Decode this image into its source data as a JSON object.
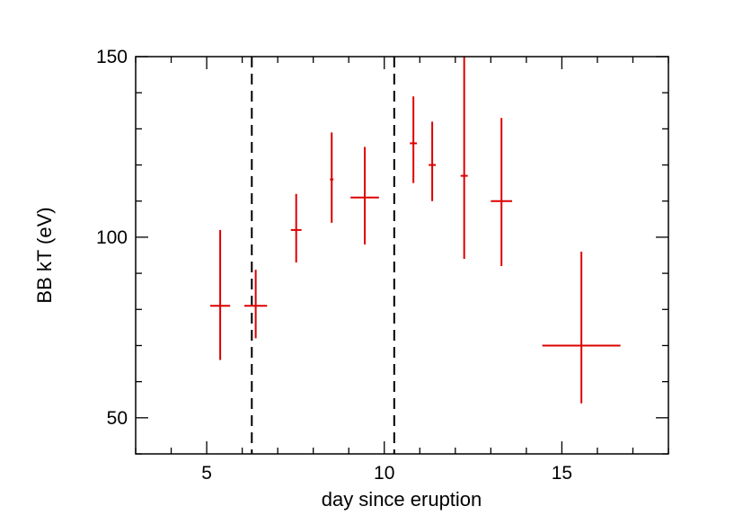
{
  "chart_data": {
    "type": "scatter",
    "title": "",
    "xlabel": "day since eruption",
    "ylabel": "BB kT (eV)",
    "xlim": [
      3,
      18
    ],
    "ylim": [
      40,
      150
    ],
    "x_ticks_major": [
      5,
      10,
      15
    ],
    "x_tick_labels": [
      "5",
      "10",
      "15"
    ],
    "y_ticks_major": [
      50,
      100,
      150
    ],
    "y_tick_labels": [
      "50",
      "100",
      "150"
    ],
    "grid": false,
    "legend": "none",
    "series_color": "#dd0000",
    "vertical_dashed_lines": [
      6.27,
      10.28
    ],
    "points": [
      {
        "x": 5.38,
        "x_err_low": 0.28,
        "x_err_high": 0.28,
        "y": 81,
        "y_err_low": 15,
        "y_err_high": 21
      },
      {
        "x": 6.38,
        "x_err_low": 0.32,
        "x_err_high": 0.32,
        "y": 81,
        "y_err_low": 9,
        "y_err_high": 10
      },
      {
        "x": 7.52,
        "x_err_low": 0.15,
        "x_err_high": 0.15,
        "y": 102,
        "y_err_low": 9,
        "y_err_high": 10
      },
      {
        "x": 8.52,
        "x_err_low": 0.05,
        "x_err_high": 0.05,
        "y": 116,
        "y_err_low": 12,
        "y_err_high": 13
      },
      {
        "x": 9.45,
        "x_err_low": 0.4,
        "x_err_high": 0.4,
        "y": 111,
        "y_err_low": 13,
        "y_err_high": 14
      },
      {
        "x": 10.82,
        "x_err_low": 0.1,
        "x_err_high": 0.1,
        "y": 126,
        "y_err_low": 11,
        "y_err_high": 13
      },
      {
        "x": 11.35,
        "x_err_low": 0.1,
        "x_err_high": 0.1,
        "y": 120,
        "y_err_low": 10,
        "y_err_high": 12
      },
      {
        "x": 12.25,
        "x_err_low": 0.1,
        "x_err_high": 0.1,
        "y": 117,
        "y_err_low": 23,
        "y_err_high": 33
      },
      {
        "x": 13.3,
        "x_err_low": 0.3,
        "x_err_high": 0.3,
        "y": 110,
        "y_err_low": 18,
        "y_err_high": 23
      },
      {
        "x": 15.55,
        "x_err_low": 1.1,
        "x_err_high": 1.1,
        "y": 70,
        "y_err_low": 16,
        "y_err_high": 26
      }
    ]
  }
}
